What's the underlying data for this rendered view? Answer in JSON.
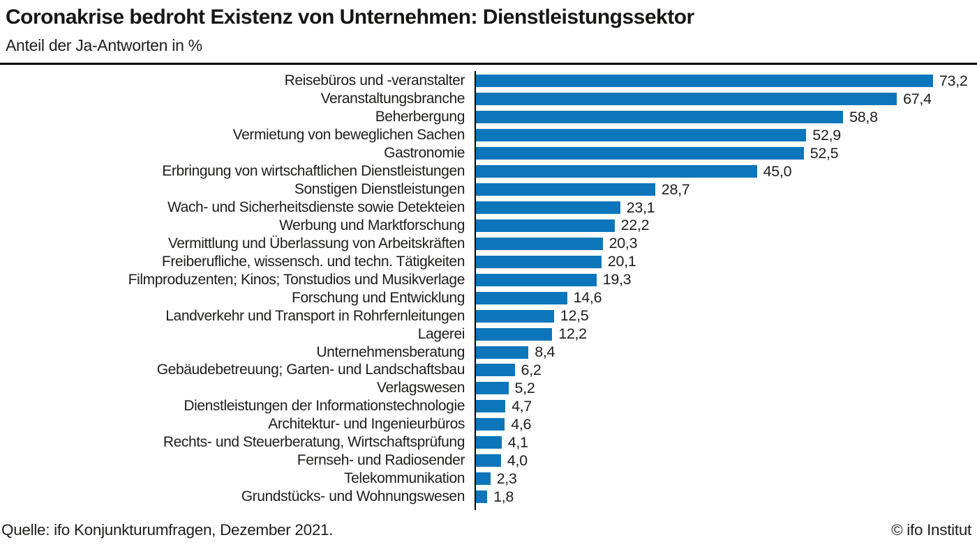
{
  "header": {
    "title": "Coronakrise bedroht Existenz von Unternehmen: Dienstleistungssektor",
    "subtitle": "Anteil der Ja-Antworten in %"
  },
  "chart_data": {
    "type": "bar",
    "orientation": "horizontal",
    "title": "Coronakrise bedroht Existenz von Unternehmen: Dienstleistungssektor",
    "subtitle": "Anteil der Ja-Antworten in %",
    "xlabel": "Anteil der Ja-Antworten in %",
    "ylabel": "",
    "xlim": [
      0,
      76
    ],
    "grid": false,
    "legend": false,
    "bar_color": "#0d76bb",
    "categories": [
      "Reisebüros und -veranstalter",
      "Veranstaltungsbranche",
      "Beherbergung",
      "Vermietung von beweglichen Sachen",
      "Gastronomie",
      "Erbringung von wirtschaftlichen Dienstleistungen",
      "Sonstigen Dienstleistungen",
      "Wach- und Sicherheitsdienste sowie Detekteien",
      "Werbung und Marktforschung",
      "Vermittlung und Überlassung von Arbeitskräften",
      "Freiberufliche, wissensch. und techn. Tätigkeiten",
      "Filmproduzenten; Kinos; Tonstudios und Musikverlage",
      "Forschung und Entwicklung",
      "Landverkehr und Transport in Rohrfernleitungen",
      "Lagerei",
      "Unternehmensberatung",
      "Gebäudebetreuung; Garten- und Landschaftsbau",
      "Verlagswesen",
      "Dienstleistungen der Informationstechnologie",
      "Architektur- und Ingenieurbüros",
      "Rechts- und Steuerberatung, Wirtschaftsprüfung",
      "Fernseh- und Radiosender",
      "Telekommunikation",
      "Grundstücks- und Wohnungswesen"
    ],
    "values": [
      73.2,
      67.4,
      58.8,
      52.9,
      52.5,
      45.0,
      28.7,
      23.1,
      22.2,
      20.3,
      20.1,
      19.3,
      14.6,
      12.5,
      12.2,
      8.4,
      6.2,
      5.2,
      4.7,
      4.6,
      4.1,
      4.0,
      2.3,
      1.8
    ],
    "value_labels": [
      "73,2",
      "67,4",
      "58,8",
      "52,9",
      "52,5",
      "45,0",
      "28,7",
      "23,1",
      "22,2",
      "20,3",
      "20,1",
      "19,3",
      "14,6",
      "12,5",
      "12,2",
      "8,4",
      "6,2",
      "5,2",
      "4,7",
      "4,6",
      "4,1",
      "4,0",
      "2,3",
      "1,8"
    ]
  },
  "footer": {
    "source": "Quelle: ifo Konjunkturumfragen, Dezember 2021.",
    "copyright": "© ifo Institut"
  }
}
